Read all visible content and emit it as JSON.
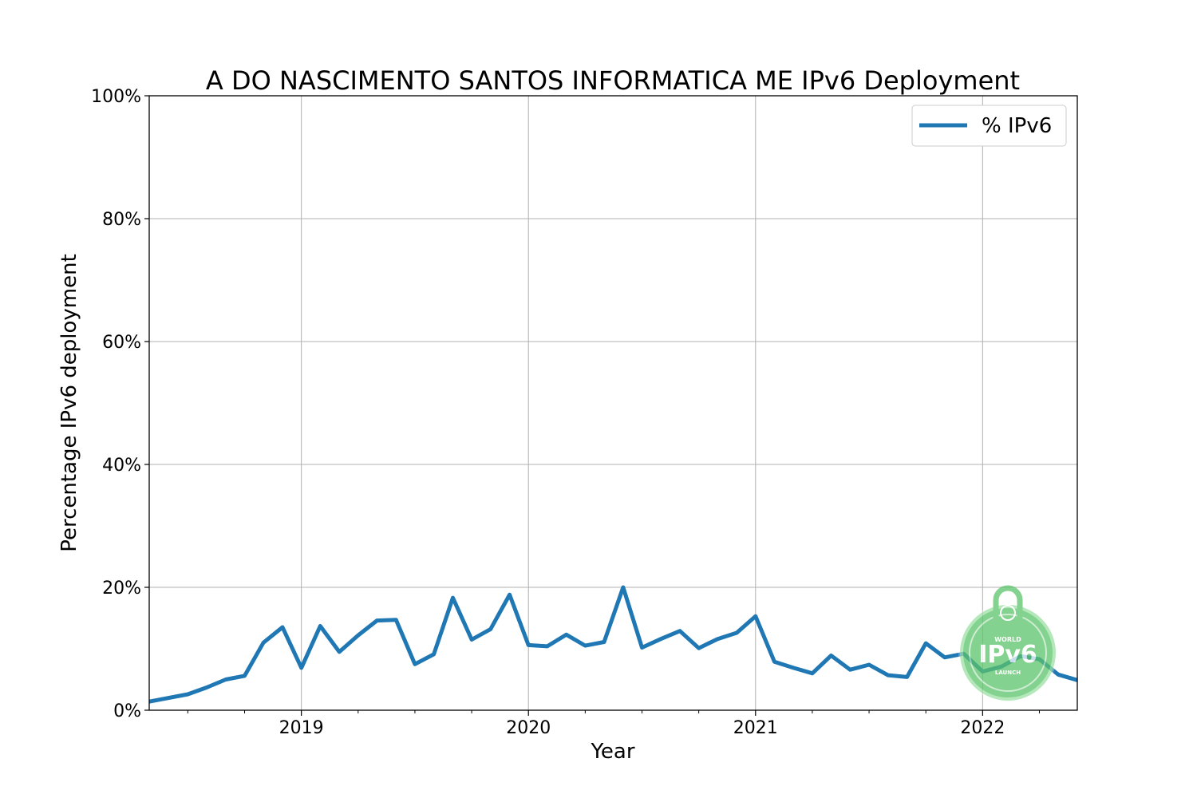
{
  "chart_data": {
    "type": "line",
    "title": "A DO NASCIMENTO SANTOS INFORMATICA ME IPv6 Deployment",
    "xlabel": "Year",
    "ylabel": "Percentage IPv6 deployment",
    "xlim": [
      2018.33,
      2022.417
    ],
    "ylim": [
      0,
      100
    ],
    "x_ticks": [
      {
        "value": 2019,
        "label": "2019"
      },
      {
        "value": 2020,
        "label": "2020"
      },
      {
        "value": 2021,
        "label": "2021"
      },
      {
        "value": 2022,
        "label": "2022"
      }
    ],
    "y_ticks": [
      {
        "value": 0,
        "label": "0%"
      },
      {
        "value": 20,
        "label": "20%"
      },
      {
        "value": 40,
        "label": "40%"
      },
      {
        "value": 60,
        "label": "60%"
      },
      {
        "value": 80,
        "label": "80%"
      },
      {
        "value": 100,
        "label": "100%"
      }
    ],
    "grid": true,
    "legend_position": "top-right",
    "series": [
      {
        "name": "% IPv6",
        "color": "#1f77b4",
        "x": [
          2018.33,
          2018.5,
          2018.583,
          2018.667,
          2018.75,
          2018.833,
          2018.917,
          2019.0,
          2019.083,
          2019.167,
          2019.25,
          2019.333,
          2019.417,
          2019.5,
          2019.583,
          2019.667,
          2019.75,
          2019.833,
          2019.917,
          2020.0,
          2020.083,
          2020.167,
          2020.25,
          2020.333,
          2020.417,
          2020.5,
          2020.583,
          2020.667,
          2020.75,
          2020.833,
          2020.917,
          2021.0,
          2021.083,
          2021.167,
          2021.25,
          2021.333,
          2021.417,
          2021.5,
          2021.583,
          2021.667,
          2021.75,
          2021.833,
          2021.917,
          2022.0,
          2022.083,
          2022.167,
          2022.25,
          2022.333,
          2022.417
        ],
        "y": [
          1.4,
          2.6,
          3.7,
          5.0,
          5.6,
          11.0,
          13.5,
          6.9,
          13.7,
          9.5,
          12.2,
          14.6,
          14.7,
          7.5,
          9.1,
          18.3,
          11.5,
          13.2,
          18.8,
          10.6,
          10.4,
          12.3,
          10.5,
          11.1,
          20.0,
          10.2,
          11.6,
          12.9,
          10.1,
          11.6,
          12.6,
          15.3,
          7.9,
          6.9,
          6.0,
          8.9,
          6.6,
          7.4,
          5.7,
          5.4,
          10.9,
          8.6,
          9.2,
          6.3,
          7.1,
          8.8,
          8.3,
          5.8,
          4.9
        ]
      }
    ]
  },
  "watermark": {
    "top_text": "WORLD",
    "main_text": "IPv6",
    "bottom_text": "LAUNCH",
    "color": "#4caf50"
  }
}
